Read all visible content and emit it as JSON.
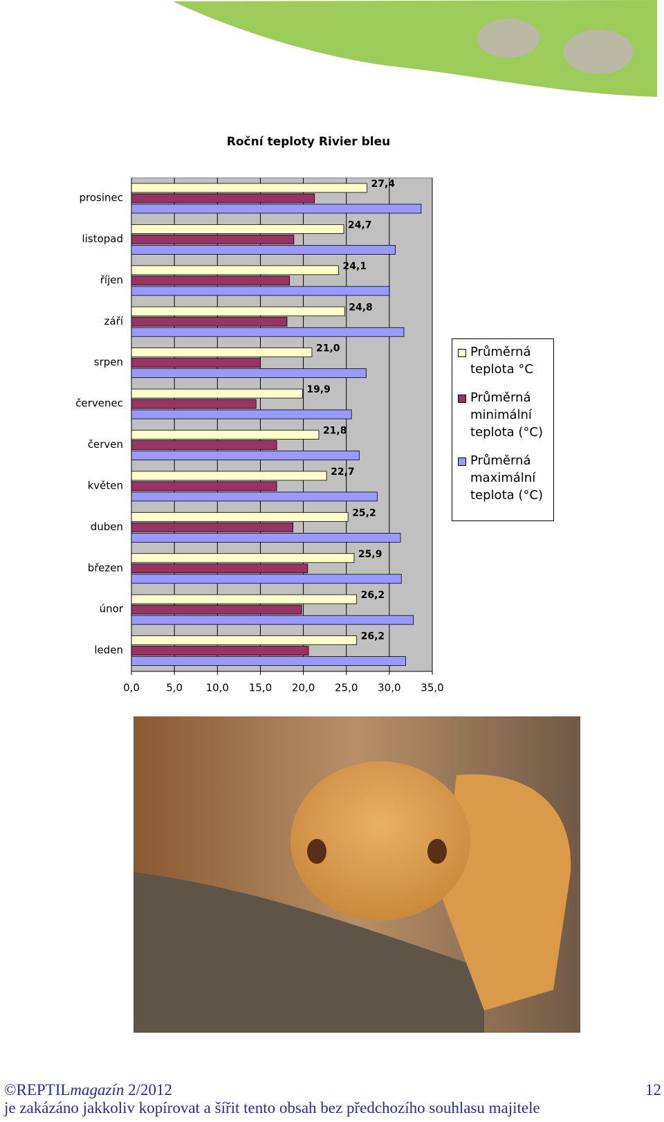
{
  "chart_data": {
    "type": "hbar",
    "title": "Roční teploty Rivier bleu",
    "categories": [
      "leden",
      "únor",
      "březen",
      "duben",
      "květen",
      "červen",
      "červenec",
      "srpen",
      "září",
      "říjen",
      "listopad",
      "prosinec"
    ],
    "series": [
      {
        "name": "Průměrná teplota °C",
        "color": "#ffffcc",
        "values": [
          26.2,
          26.2,
          25.9,
          25.2,
          22.7,
          21.8,
          19.9,
          21.0,
          24.8,
          24.1,
          24.7,
          27.4
        ],
        "value_labels": [
          "26,2",
          "26,2",
          "25,9",
          "25,2",
          "22,7",
          "21,8",
          "19,9",
          "21,0",
          "24,8",
          "24,1",
          "24,7",
          "27,4"
        ]
      },
      {
        "name": "Průměrná minimální teplota (°C)",
        "color": "#993366",
        "values": [
          20.6,
          19.8,
          20.5,
          18.8,
          16.9,
          16.9,
          14.5,
          15.0,
          18.1,
          18.4,
          18.9,
          21.3
        ]
      },
      {
        "name": "Průměrná maximální teplota (°C)",
        "color": "#9999ff",
        "values": [
          31.9,
          32.8,
          31.4,
          31.3,
          28.6,
          26.5,
          25.6,
          27.3,
          31.7,
          30.0,
          30.7,
          33.7
        ]
      }
    ],
    "xlim": [
      0,
      35
    ],
    "xticks": [
      {
        "value": 0,
        "label": "0,0"
      },
      {
        "value": 5,
        "label": "5,0"
      },
      {
        "value": 10,
        "label": "10,0"
      },
      {
        "value": 15,
        "label": "15,0"
      },
      {
        "value": 20,
        "label": "20,0"
      },
      {
        "value": 25,
        "label": "25,0"
      },
      {
        "value": 30,
        "label": "30,0"
      },
      {
        "value": 35,
        "label": "35,0"
      }
    ],
    "grid": true,
    "legend": "right"
  },
  "footer": {
    "brand": "©REPTIL",
    "magazine": "magazín",
    "issue": "2/2012",
    "page": "12",
    "notice": "je zakázáno jakkoliv kopírovat a šířit tento obsah bez předchozího souhlasu majitele"
  }
}
